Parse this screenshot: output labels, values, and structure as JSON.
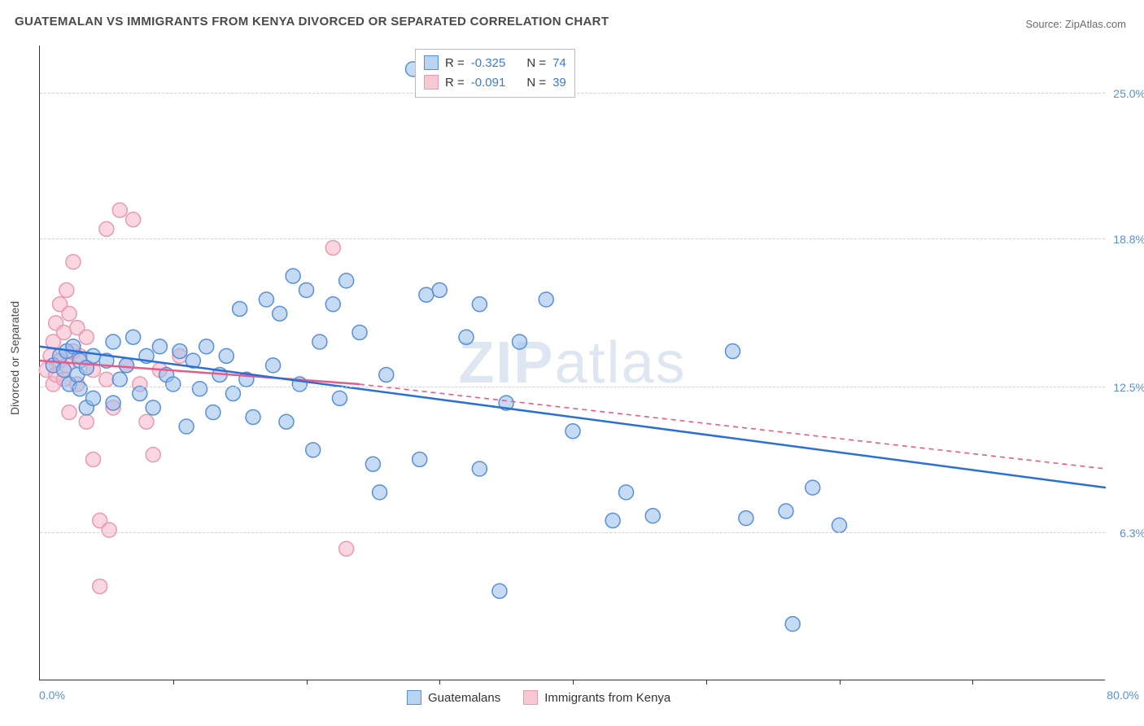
{
  "title": "GUATEMALAN VS IMMIGRANTS FROM KENYA DIVORCED OR SEPARATED CORRELATION CHART",
  "source": "Source: ZipAtlas.com",
  "y_axis_title": "Divorced or Separated",
  "watermark": "ZIPatlas",
  "chart": {
    "type": "scatter",
    "xlim": [
      0,
      80
    ],
    "ylim": [
      0,
      27
    ],
    "x_label_min": "0.0%",
    "x_label_max": "80.0%",
    "x_ticks": [
      10,
      20,
      30,
      40,
      50,
      60,
      70
    ],
    "y_gridlines": [
      {
        "value": 6.3,
        "label": "6.3%"
      },
      {
        "value": 12.5,
        "label": "12.5%"
      },
      {
        "value": 18.8,
        "label": "18.8%"
      },
      {
        "value": 25.0,
        "label": "25.0%"
      }
    ],
    "background_color": "#ffffff",
    "grid_color": "#d0d0d0",
    "marker_radius": 9,
    "marker_stroke_width": 1.5,
    "line_width": 2.5,
    "series": [
      {
        "name": "Guatemalans",
        "swatch_fill": "#b8d4f0",
        "swatch_stroke": "#5a8fd6",
        "marker_fill": "rgba(150,190,235,0.55)",
        "marker_stroke": "#5a8fd6",
        "line_color": "#2a6fd6",
        "R": "-0.325",
        "N": "74",
        "regression": {
          "x1": 0,
          "y1": 14.2,
          "x2": 80,
          "y2": 8.2,
          "dash": null
        },
        "points": [
          [
            1.0,
            13.4
          ],
          [
            1.5,
            13.8
          ],
          [
            1.8,
            13.2
          ],
          [
            2.0,
            14.0
          ],
          [
            2.2,
            12.6
          ],
          [
            2.5,
            14.2
          ],
          [
            2.8,
            13.0
          ],
          [
            3.0,
            13.6
          ],
          [
            3.0,
            12.4
          ],
          [
            3.5,
            13.3
          ],
          [
            3.5,
            11.6
          ],
          [
            4.0,
            13.8
          ],
          [
            4.0,
            12.0
          ],
          [
            5.0,
            13.6
          ],
          [
            5.5,
            11.8
          ],
          [
            5.5,
            14.4
          ],
          [
            6.0,
            12.8
          ],
          [
            6.5,
            13.4
          ],
          [
            7.0,
            14.6
          ],
          [
            7.5,
            12.2
          ],
          [
            8.0,
            13.8
          ],
          [
            8.5,
            11.6
          ],
          [
            9.0,
            14.2
          ],
          [
            9.5,
            13.0
          ],
          [
            10.0,
            12.6
          ],
          [
            10.5,
            14.0
          ],
          [
            11.0,
            10.8
          ],
          [
            11.5,
            13.6
          ],
          [
            12.0,
            12.4
          ],
          [
            12.5,
            14.2
          ],
          [
            13.0,
            11.4
          ],
          [
            13.5,
            13.0
          ],
          [
            14.0,
            13.8
          ],
          [
            14.5,
            12.2
          ],
          [
            15.0,
            15.8
          ],
          [
            15.5,
            12.8
          ],
          [
            16.0,
            11.2
          ],
          [
            17.0,
            16.2
          ],
          [
            17.5,
            13.4
          ],
          [
            18.0,
            15.6
          ],
          [
            18.5,
            11.0
          ],
          [
            19.0,
            17.2
          ],
          [
            19.5,
            12.6
          ],
          [
            20.0,
            16.6
          ],
          [
            20.5,
            9.8
          ],
          [
            21.0,
            14.4
          ],
          [
            22.0,
            16.0
          ],
          [
            22.5,
            12.0
          ],
          [
            23.0,
            17.0
          ],
          [
            24.0,
            14.8
          ],
          [
            25.0,
            9.2
          ],
          [
            25.5,
            8.0
          ],
          [
            26.0,
            13.0
          ],
          [
            28.0,
            26.0
          ],
          [
            28.5,
            9.4
          ],
          [
            29.0,
            16.4
          ],
          [
            30.0,
            16.6
          ],
          [
            32.0,
            14.6
          ],
          [
            33.0,
            16.0
          ],
          [
            34.5,
            3.8
          ],
          [
            35.0,
            11.8
          ],
          [
            36.0,
            14.4
          ],
          [
            38.0,
            16.2
          ],
          [
            40.0,
            10.6
          ],
          [
            43.0,
            6.8
          ],
          [
            44.0,
            8.0
          ],
          [
            46.0,
            7.0
          ],
          [
            52.0,
            14.0
          ],
          [
            53.0,
            6.9
          ],
          [
            56.0,
            7.2
          ],
          [
            56.5,
            2.4
          ],
          [
            58.0,
            8.2
          ],
          [
            60.0,
            6.6
          ],
          [
            33.0,
            9.0
          ]
        ]
      },
      {
        "name": "Immigrants from Kenya",
        "swatch_fill": "#f6c8d4",
        "swatch_stroke": "#e89ab0",
        "marker_fill": "rgba(245,180,200,0.55)",
        "marker_stroke": "#e89ab0",
        "line_color": "#e85a8a",
        "R": "-0.091",
        "N": "39",
        "regression_solid": {
          "x1": 0,
          "y1": 13.6,
          "x2": 24,
          "y2": 12.6
        },
        "regression_dashed": {
          "x1": 24,
          "y1": 12.6,
          "x2": 80,
          "y2": 9.0,
          "dash": "6,5"
        },
        "points": [
          [
            0.5,
            13.2
          ],
          [
            0.8,
            13.8
          ],
          [
            1.0,
            12.6
          ],
          [
            1.0,
            14.4
          ],
          [
            1.2,
            13.0
          ],
          [
            1.2,
            15.2
          ],
          [
            1.5,
            13.6
          ],
          [
            1.5,
            16.0
          ],
          [
            1.8,
            12.8
          ],
          [
            1.8,
            14.8
          ],
          [
            2.0,
            13.4
          ],
          [
            2.0,
            16.6
          ],
          [
            2.2,
            11.4
          ],
          [
            2.2,
            15.6
          ],
          [
            2.5,
            14.0
          ],
          [
            2.5,
            17.8
          ],
          [
            2.8,
            12.6
          ],
          [
            2.8,
            15.0
          ],
          [
            3.0,
            13.8
          ],
          [
            3.5,
            11.0
          ],
          [
            3.5,
            14.6
          ],
          [
            4.0,
            9.4
          ],
          [
            4.0,
            13.2
          ],
          [
            4.5,
            4.0
          ],
          [
            5.0,
            12.8
          ],
          [
            5.0,
            19.2
          ],
          [
            5.5,
            11.6
          ],
          [
            6.0,
            20.0
          ],
          [
            6.5,
            13.4
          ],
          [
            7.0,
            19.6
          ],
          [
            7.5,
            12.6
          ],
          [
            8.0,
            11.0
          ],
          [
            8.5,
            9.6
          ],
          [
            9.0,
            13.2
          ],
          [
            4.5,
            6.8
          ],
          [
            5.2,
            6.4
          ],
          [
            22.0,
            18.4
          ],
          [
            23.0,
            5.6
          ],
          [
            10.5,
            13.8
          ]
        ]
      }
    ]
  },
  "bottom_legend": [
    {
      "label": "Guatemalans",
      "fill": "#b8d4f0",
      "stroke": "#5a8fd6"
    },
    {
      "label": "Immigrants from Kenya",
      "fill": "#f6c8d4",
      "stroke": "#e89ab0"
    }
  ]
}
